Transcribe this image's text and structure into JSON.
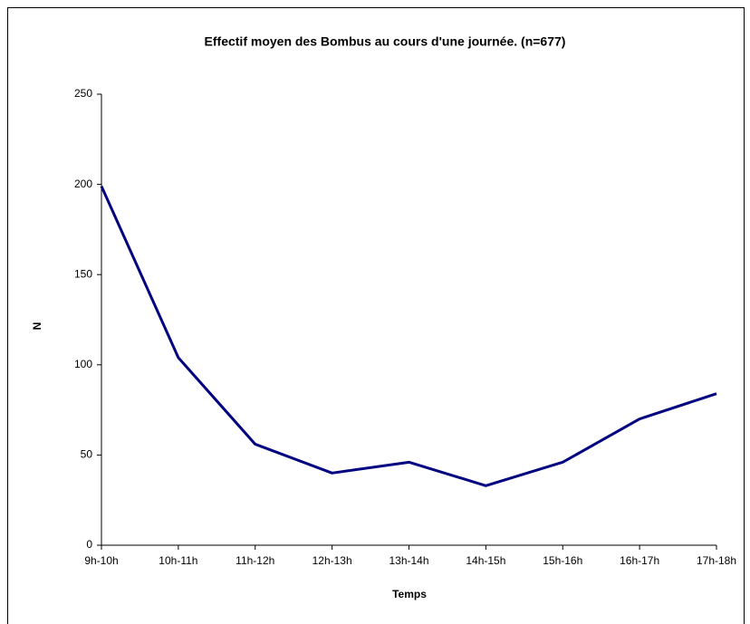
{
  "chart_data": {
    "type": "line",
    "title": "Effectif moyen des Bombus  au cours d'une journée. (n=677)",
    "x_label": "Temps",
    "y_label": "N",
    "categories": [
      "9h-10h",
      "10h-11h",
      "11h-12h",
      "12h-13h",
      "13h-14h",
      "14h-15h",
      "15h-16h",
      "16h-17h",
      "17h-18h"
    ],
    "series": [
      {
        "name": "N",
        "color": "#000080",
        "values": [
          199,
          104,
          56,
          40,
          46,
          33,
          46,
          70,
          84
        ]
      }
    ],
    "ylim": [
      0,
      250
    ],
    "yticks": [
      0,
      50,
      100,
      150,
      200,
      250
    ]
  }
}
